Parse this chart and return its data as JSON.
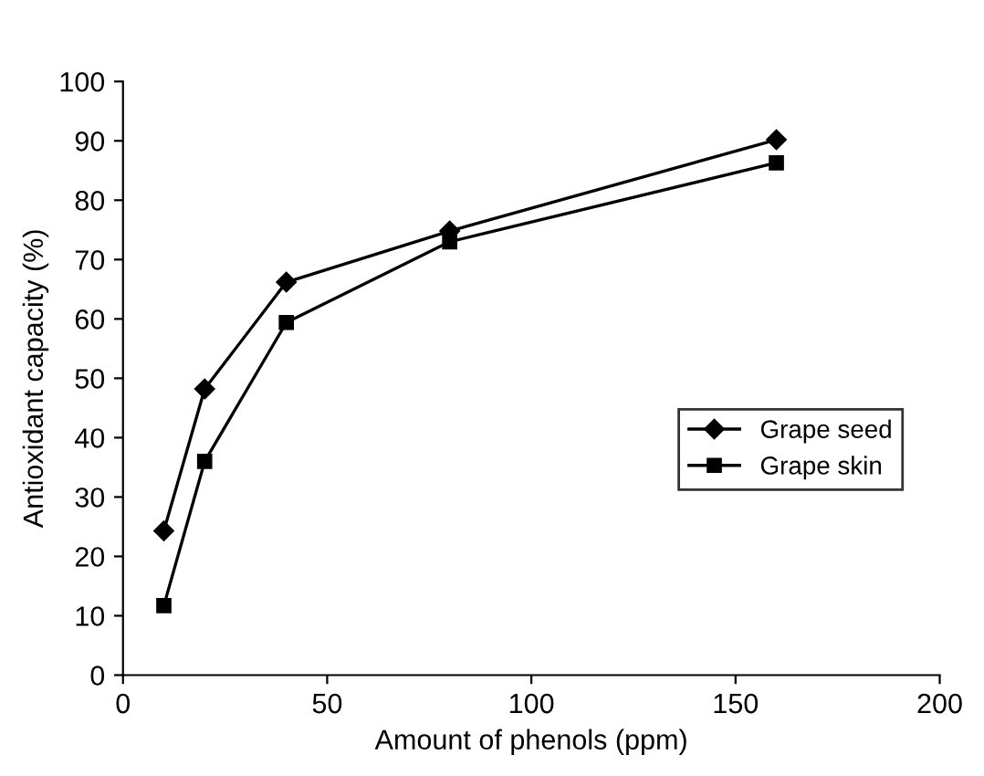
{
  "chart_data": {
    "type": "line",
    "xlabel": "Amount of phenols (ppm)",
    "ylabel": "Antioxidant capacity (%)",
    "x": [
      10,
      20,
      40,
      80,
      160
    ],
    "series": [
      {
        "name": "Grape seed",
        "color": "#000000",
        "marker": "diamond",
        "values": [
          24.3,
          48.2,
          66.2,
          74.8,
          90.2
        ]
      },
      {
        "name": "Grape skin",
        "color": "#000000",
        "marker": "square",
        "values": [
          11.7,
          36.0,
          59.4,
          73.0,
          86.3
        ]
      }
    ],
    "xlim": [
      0,
      200
    ],
    "xticks": [
      0,
      50,
      100,
      150,
      200
    ],
    "ylim": [
      0,
      100
    ],
    "yticks": [
      0,
      10,
      20,
      30,
      40,
      50,
      60,
      70,
      80,
      90,
      100
    ],
    "grid": false,
    "legend": "right",
    "line_style": "solid"
  }
}
